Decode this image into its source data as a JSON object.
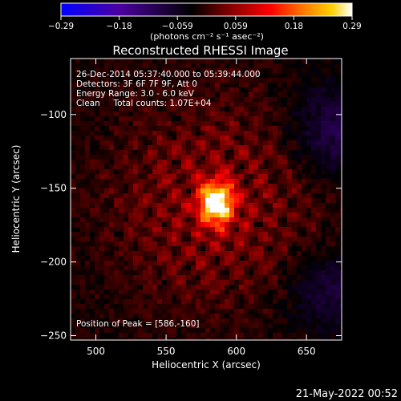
{
  "chart_data": {
    "type": "heatmap",
    "title": "Reconstructed RHESSI Image",
    "xlabel": "Heliocentric X (arcsec)",
    "ylabel": "Heliocentric Y (arcsec)",
    "xlim": [
      482,
      675
    ],
    "ylim": [
      -253,
      -62
    ],
    "x_ticks": [
      500,
      550,
      600,
      650
    ],
    "y_ticks": [
      -100,
      -150,
      -200,
      -250
    ],
    "x_tick_labels": [
      "500",
      "550",
      "600",
      "650"
    ],
    "y_tick_labels": [
      "−100",
      "−150",
      "−200",
      "−250"
    ],
    "annotations": [
      "26-Dec-2014 05:37:40.000 to 05:39:44.000",
      "Detectors: 3F 6F 7F 9F, Att 0",
      "Energy Range: 3.0 - 6.0 keV",
      "Clean     Total counts: 1.07E+04"
    ],
    "peak_label": "Position of Peak = [586,-160]",
    "peak": [
      586,
      -160
    ],
    "colorbar": {
      "range": [
        -0.29,
        0.29
      ],
      "tick_labels": [
        "−0.29",
        "−0.18",
        "−0.059",
        "0.059",
        "0.18",
        "0.29"
      ],
      "label": "(photons cm⁻² s⁻¹ asec⁻²)",
      "colormap": [
        "#0000ff",
        "#4b00a0",
        "#000000",
        "#700000",
        "#ff0000",
        "#ff8000",
        "#ffd000",
        "#ffffff"
      ]
    },
    "grid": false
  },
  "footer_date": "21-May-2022 00:52"
}
